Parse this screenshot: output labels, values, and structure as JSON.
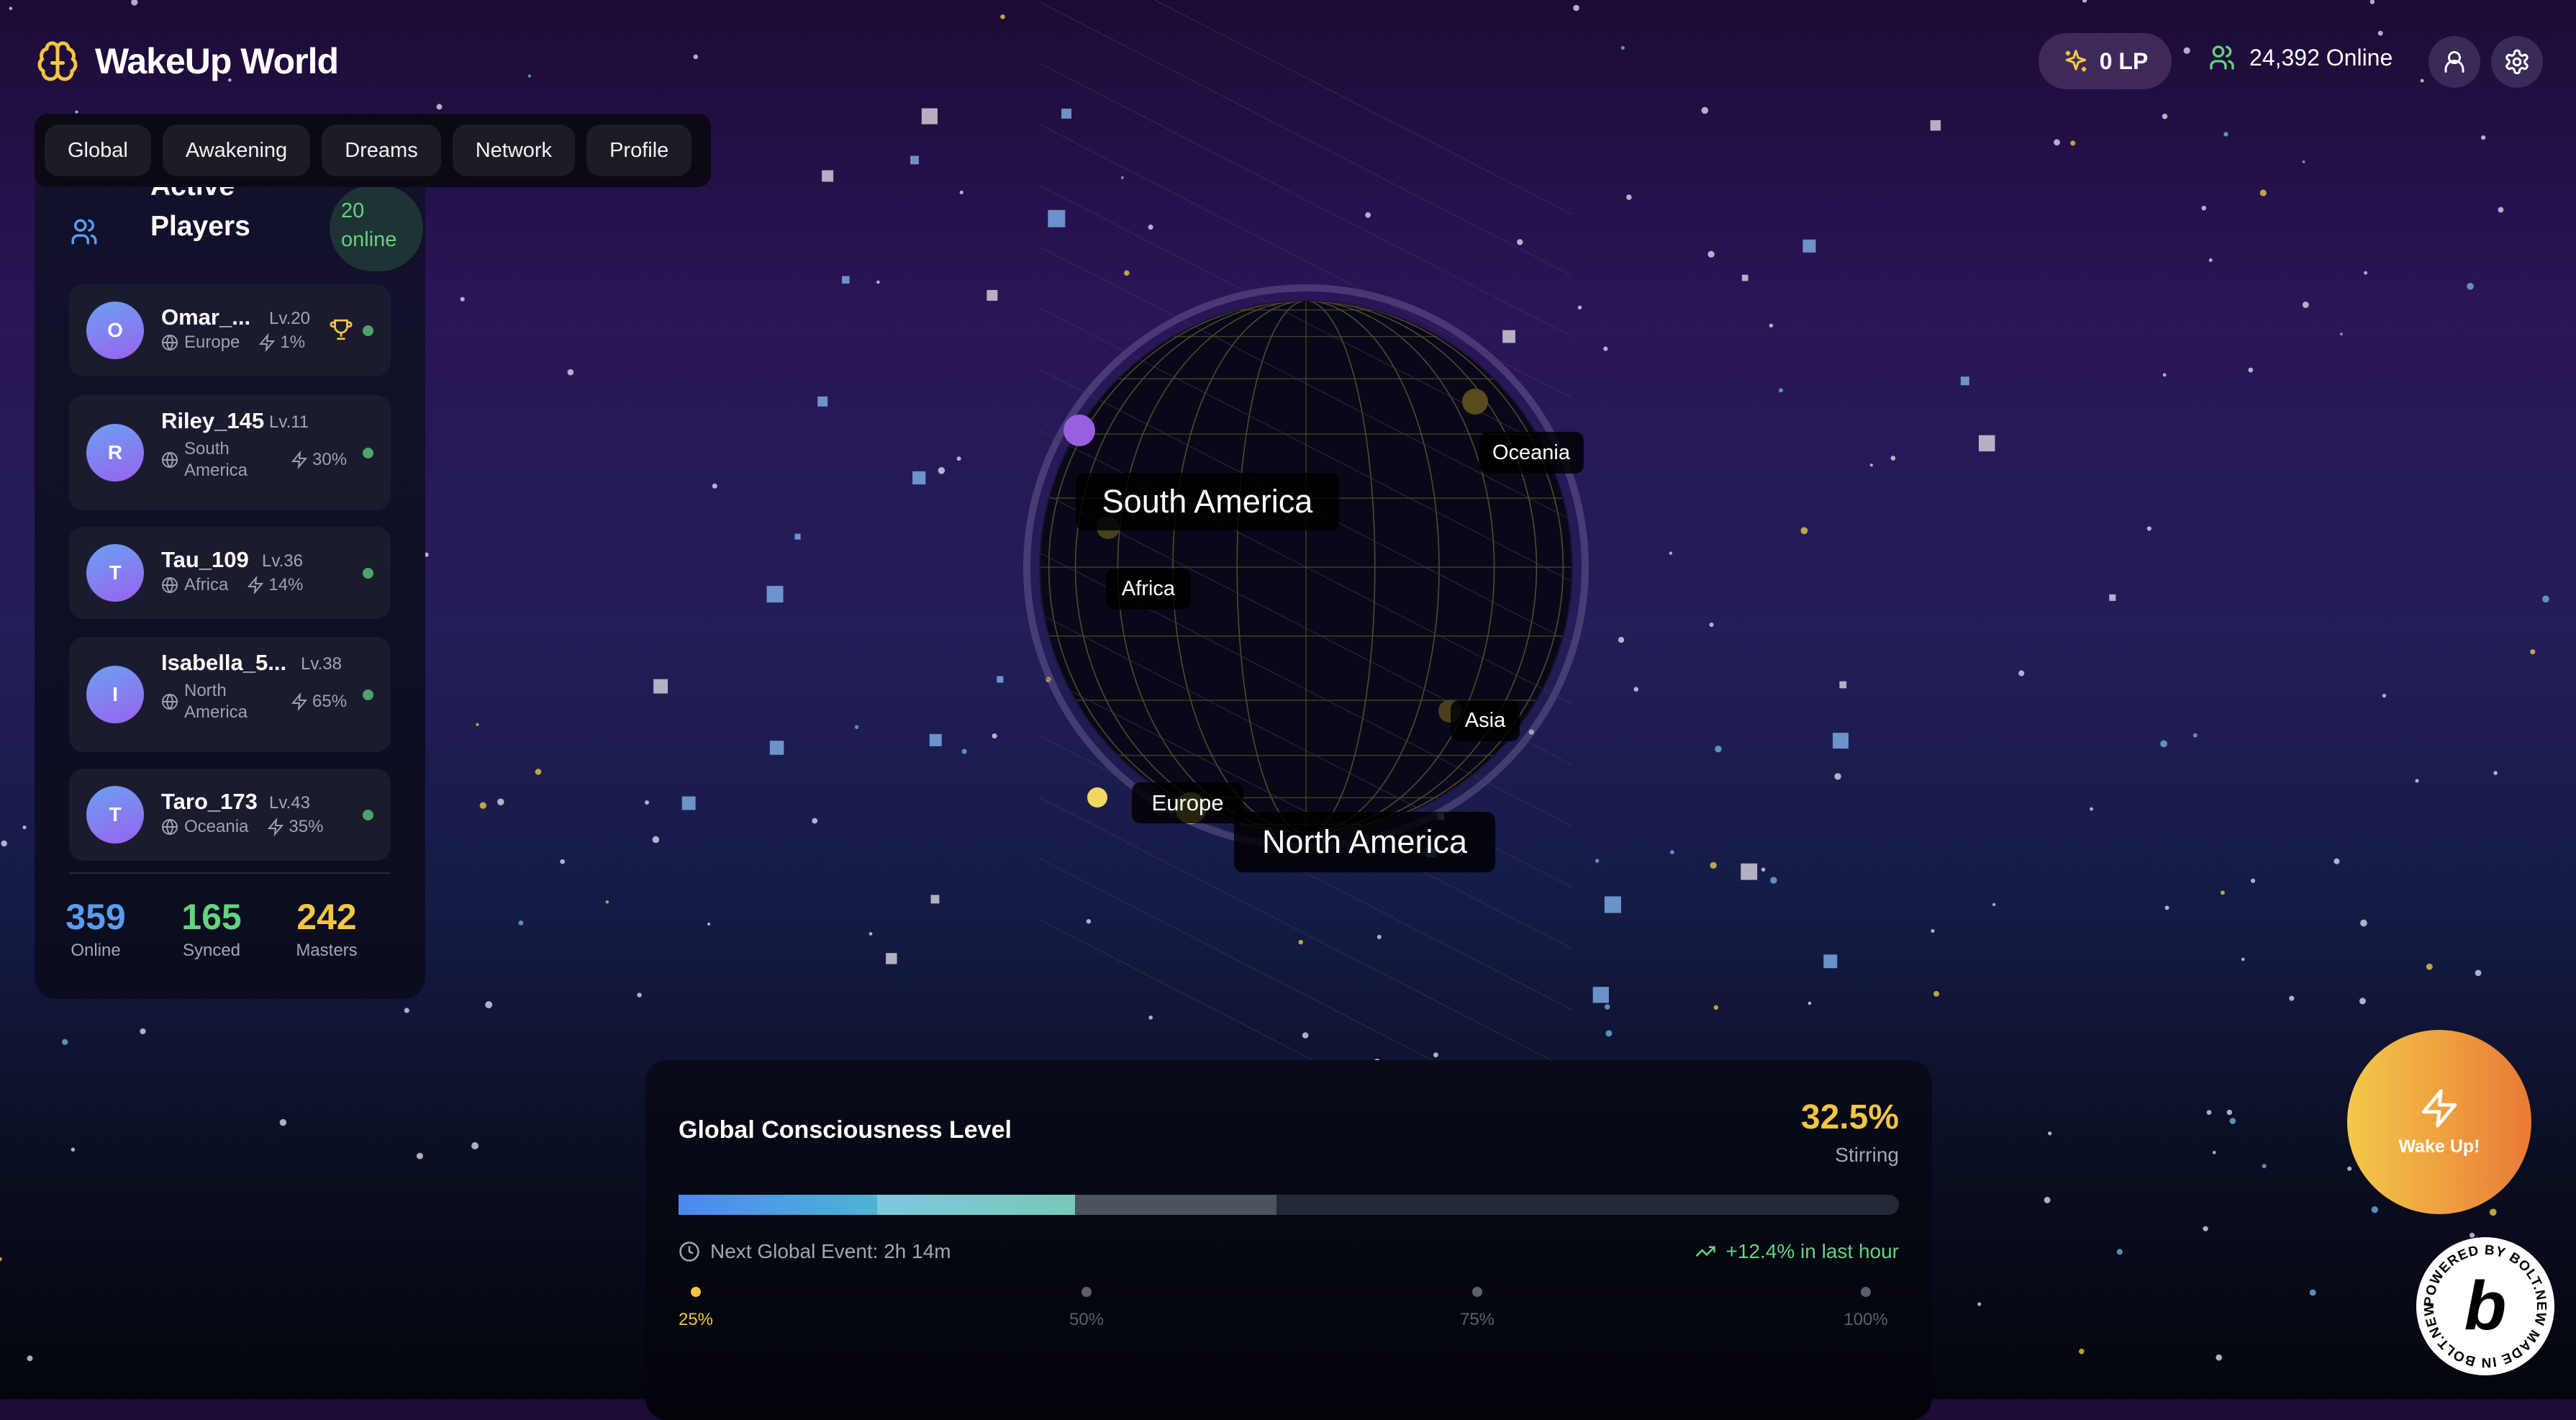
{
  "header": {
    "app_title": "WakeUp World",
    "logo_icon": "brain-icon",
    "lp_label": "0 LP",
    "online_label": "24,392 Online",
    "accent_color": "#f4c542"
  },
  "nav": {
    "tabs": [
      {
        "label": "Global"
      },
      {
        "label": "Awakening"
      },
      {
        "label": "Dreams"
      },
      {
        "label": "Network"
      },
      {
        "label": "Profile"
      }
    ]
  },
  "sidebar": {
    "title": "Active Players",
    "online_badge": "20 online",
    "players": [
      {
        "initial": "O",
        "name": "Omar_...",
        "level": "Lv.20",
        "region": "Europe",
        "power": "1%",
        "trophy": true
      },
      {
        "initial": "R",
        "name": "Riley_145",
        "level": "Lv.11",
        "region": "South America",
        "power": "30%"
      },
      {
        "initial": "T",
        "name": "Tau_109",
        "level": "Lv.36",
        "region": "Africa",
        "power": "14%"
      },
      {
        "initial": "I",
        "name": "Isabella_5...",
        "level": "Lv.38",
        "region": "North America",
        "power": "65%"
      },
      {
        "initial": "T",
        "name": "Taro_173",
        "level": "Lv.43",
        "region": "Oceania",
        "power": "35%"
      }
    ],
    "stats": [
      {
        "value": "359",
        "label": "Online",
        "color": "#5b9cf0"
      },
      {
        "value": "165",
        "label": "Synced",
        "color": "#63d47f"
      },
      {
        "value": "242",
        "label": "Masters",
        "color": "#f4c542"
      }
    ]
  },
  "globe": {
    "regions": [
      "South America",
      "Oceania",
      "Africa",
      "Asia",
      "Europe",
      "North America"
    ]
  },
  "consciousness": {
    "title": "Global Consciousness Level",
    "value": "32.5%",
    "value_percent": 32.5,
    "state": "Stirring",
    "next_event": "Next Global Event: 2h 14m",
    "trend": "+12.4% in last hour",
    "milestones": [
      {
        "label": "25%",
        "reached": true
      },
      {
        "label": "50%",
        "reached": false
      },
      {
        "label": "75%",
        "reached": false
      },
      {
        "label": "100%",
        "reached": false
      }
    ]
  },
  "wake_button": {
    "label": "Wake Up!"
  },
  "badge": {
    "text": "POWERED BY BOLT.NEW MADE IN BOLT.NEW "
  }
}
